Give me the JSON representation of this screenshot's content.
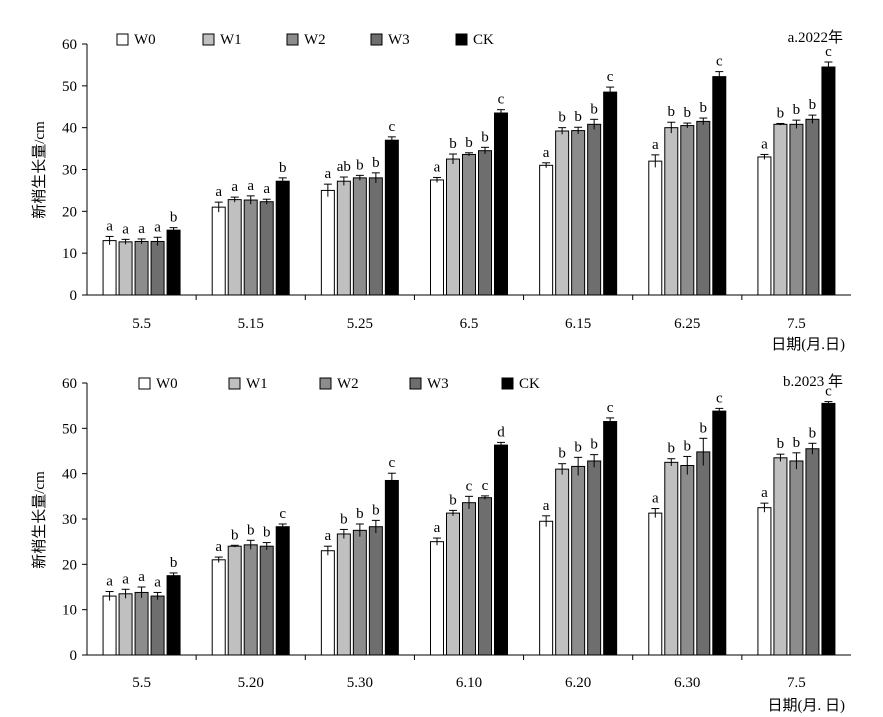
{
  "chart_data": [
    {
      "type": "bar",
      "title": "a.2022年",
      "xlabel": "日期(月.日)",
      "ylabel": "新梢生长量/cm",
      "ylim": [
        0,
        60
      ],
      "yticks": [
        0,
        10,
        20,
        30,
        40,
        50,
        60
      ],
      "categories": [
        "5.5",
        "5.15",
        "5.25",
        "6.5",
        "6.15",
        "6.25",
        "7.5"
      ],
      "legend_position": "top-left",
      "series": [
        {
          "name": "W0",
          "color": "#ffffff",
          "values": [
            13,
            21,
            25,
            27.5,
            31,
            32,
            33
          ],
          "errors": [
            1,
            1.2,
            1.5,
            0.6,
            0.6,
            1.5,
            0.6
          ],
          "labels": [
            "a",
            "a",
            "a",
            "a",
            "a",
            "a",
            "a"
          ]
        },
        {
          "name": "W1",
          "color": "#c0c0c0",
          "values": [
            12.7,
            22.8,
            27.2,
            32.5,
            39.2,
            40,
            40.8
          ],
          "errors": [
            0.6,
            0.6,
            1.0,
            1.2,
            0.8,
            1.3,
            0.2
          ],
          "labels": [
            "a",
            "a",
            "ab",
            "b",
            "b",
            "b",
            "b"
          ]
        },
        {
          "name": "W2",
          "color": "#8c8c8c",
          "values": [
            12.8,
            22.7,
            28,
            33.6,
            39.3,
            40.5,
            40.8
          ],
          "errors": [
            0.6,
            1.0,
            0.6,
            0.4,
            0.8,
            0.6,
            1.0
          ],
          "labels": [
            "a",
            "a",
            "b",
            "b",
            "b",
            "b",
            "b"
          ]
        },
        {
          "name": "W3",
          "color": "#6e6e6e",
          "values": [
            12.8,
            22.3,
            28,
            34.5,
            40.8,
            41.5,
            42
          ],
          "errors": [
            1.0,
            0.6,
            1.2,
            0.8,
            1.2,
            0.8,
            1.0
          ],
          "labels": [
            "a",
            "a",
            "b",
            "b",
            "b",
            "b",
            "b"
          ]
        },
        {
          "name": "CK",
          "color": "#000000",
          "values": [
            15.5,
            27.2,
            37,
            43.5,
            48.5,
            52.2,
            54.5
          ],
          "errors": [
            0.6,
            0.8,
            0.8,
            0.8,
            1.2,
            1.2,
            1.2
          ],
          "labels": [
            "b",
            "b",
            "c",
            "c",
            "c",
            "c",
            "c"
          ]
        }
      ]
    },
    {
      "type": "bar",
      "title": "b.2023 年",
      "xlabel": "日期(月. 日)",
      "ylabel": "新梢生长量/cm",
      "ylim": [
        0,
        60
      ],
      "yticks": [
        0,
        10,
        20,
        30,
        40,
        50,
        60
      ],
      "categories": [
        "5.5",
        "5.20",
        "5.30",
        "6.10",
        "6.20",
        "6.30",
        "7.5"
      ],
      "legend_position": "top-left",
      "series": [
        {
          "name": "W0",
          "color": "#ffffff",
          "values": [
            13,
            21,
            23,
            25,
            29.5,
            31.3,
            32.5
          ],
          "errors": [
            1.0,
            0.6,
            1.0,
            0.8,
            1.2,
            1.0,
            1.0
          ],
          "labels": [
            "a",
            "a",
            "a",
            "a",
            "a",
            "a",
            "a"
          ]
        },
        {
          "name": "W1",
          "color": "#c0c0c0",
          "values": [
            13.5,
            24,
            26.7,
            31.3,
            41,
            42.5,
            43.5
          ],
          "errors": [
            1.0,
            0.2,
            1.0,
            0.6,
            1.2,
            0.8,
            0.8
          ],
          "labels": [
            "a",
            "b",
            "b",
            "b",
            "b",
            "b",
            "b"
          ]
        },
        {
          "name": "W2",
          "color": "#8c8c8c",
          "values": [
            13.8,
            24.3,
            27.5,
            33.6,
            41.6,
            41.8,
            42.8
          ],
          "errors": [
            1.2,
            1.0,
            1.4,
            1.4,
            2.0,
            2.0,
            1.8
          ],
          "labels": [
            "a",
            "b",
            "b",
            "c",
            "b",
            "b",
            "b"
          ]
        },
        {
          "name": "W3",
          "color": "#6e6e6e",
          "values": [
            13,
            24,
            28.3,
            34.7,
            42.8,
            44.8,
            45.5
          ],
          "errors": [
            0.8,
            0.8,
            1.4,
            0.4,
            1.4,
            3.0,
            1.2
          ],
          "labels": [
            "a",
            "b",
            "b",
            "c",
            "b",
            "b",
            "b"
          ]
        },
        {
          "name": "CK",
          "color": "#000000",
          "values": [
            17.5,
            28.3,
            38.5,
            46.3,
            51.5,
            53.8,
            55.5
          ],
          "errors": [
            0.6,
            0.6,
            1.6,
            0.6,
            0.8,
            0.6,
            0.4
          ],
          "labels": [
            "b",
            "c",
            "c",
            "d",
            "c",
            "c",
            "c"
          ]
        }
      ]
    }
  ]
}
